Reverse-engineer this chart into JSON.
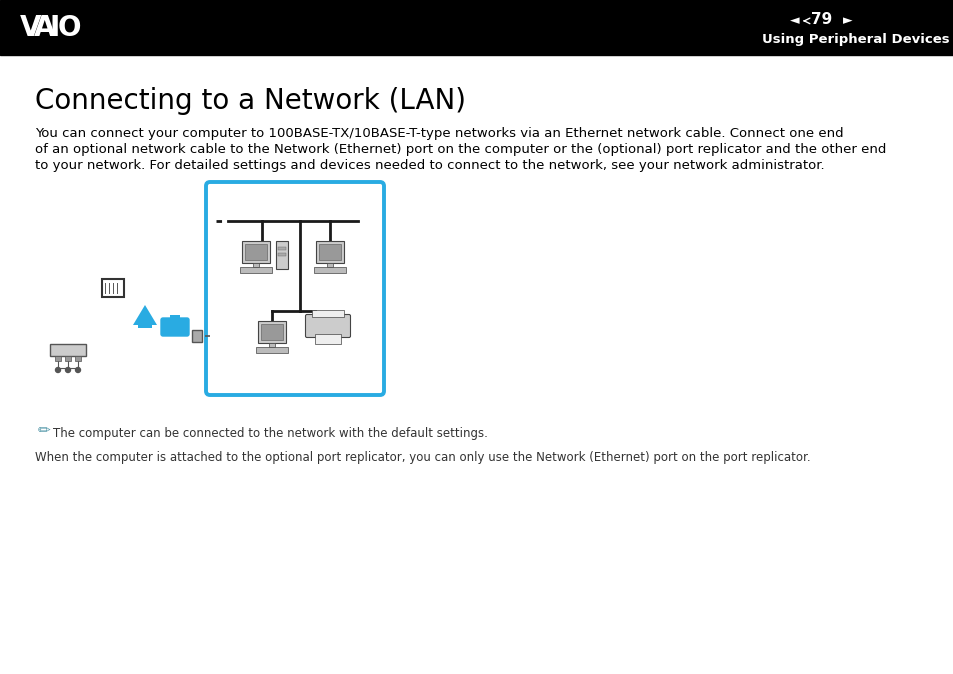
{
  "bg_color": "#ffffff",
  "header_bg": "#000000",
  "page_number": "79",
  "section_title": "Using Peripheral Devices",
  "title": "Connecting to a Network (LAN)",
  "body_text1": "You can connect your computer to 100BASE-TX/10BASE-T-type networks via an Ethernet network cable. Connect one end",
  "body_text2": "of an optional network cable to the Network (Ethernet) port on the computer or the (optional) port replicator and the other end",
  "body_text3": "to your network. For detailed settings and devices needed to connect to the network, see your network administrator.",
  "note_line1": "The computer can be connected to the network with the default settings.",
  "note_line2": "When the computer is attached to the optional port replicator, you can only use the Network (Ethernet) port on the port replicator.",
  "diagram_border_color": "#29abe2",
  "arrow_color": "#29abe2",
  "dashed_line_color": "#555555",
  "title_fontsize": 20,
  "body_fontsize": 9.5,
  "note_fontsize": 8.5,
  "header_fontsize": 9.5,
  "page_num_fontsize": 10
}
